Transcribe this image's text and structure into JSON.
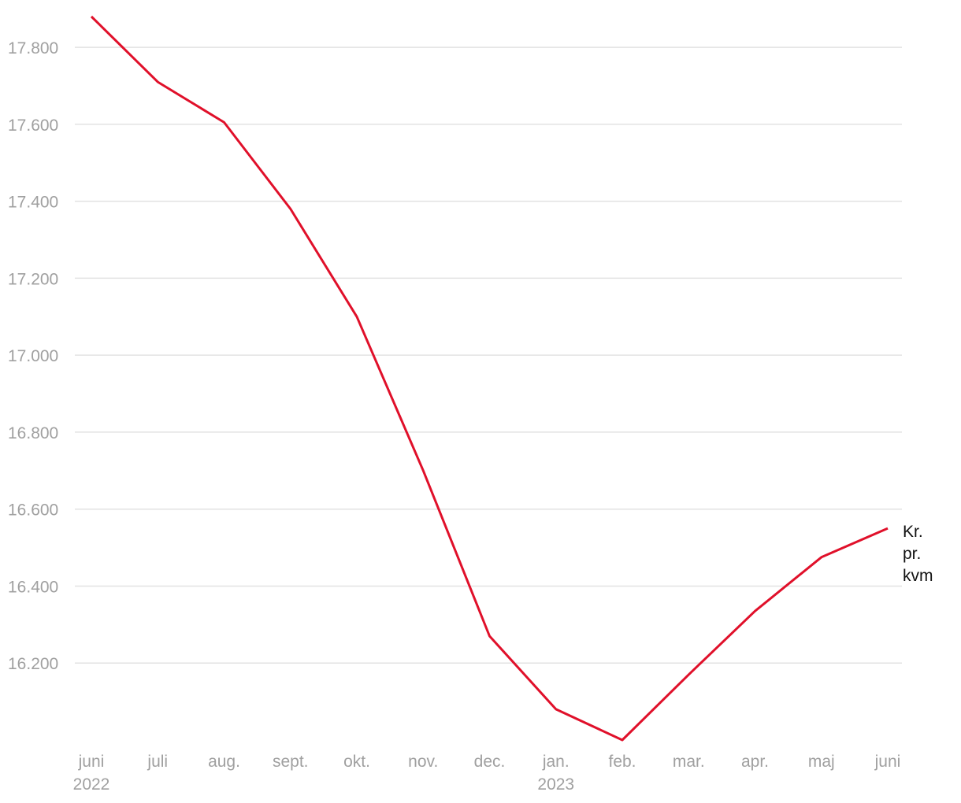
{
  "chart_data": {
    "type": "line",
    "categories": [
      "juni 2022",
      "juli",
      "aug.",
      "sept.",
      "okt.",
      "nov.",
      "dec.",
      "jan. 2023",
      "feb.",
      "mar.",
      "apr.",
      "maj",
      "juni"
    ],
    "series": [
      {
        "name": "Kr. pr. kvm",
        "color": "#e0102a",
        "values": [
          17880,
          17710,
          17605,
          17380,
          17100,
          16700,
          16270,
          16080,
          16000,
          16170,
          16335,
          16475,
          16550
        ]
      }
    ],
    "ylim": [
      16000,
      17880
    ],
    "yticks": [
      {
        "value": 16200,
        "label": "16.200"
      },
      {
        "value": 16400,
        "label": "16.400"
      },
      {
        "value": 16600,
        "label": "16.600"
      },
      {
        "value": 16800,
        "label": "16.800"
      },
      {
        "value": 17000,
        "label": "17.000"
      },
      {
        "value": 17200,
        "label": "17.200"
      },
      {
        "value": 17400,
        "label": "17.400"
      },
      {
        "value": 17600,
        "label": "17.600"
      },
      {
        "value": 17800,
        "label": "17.800"
      }
    ],
    "grid": true
  }
}
